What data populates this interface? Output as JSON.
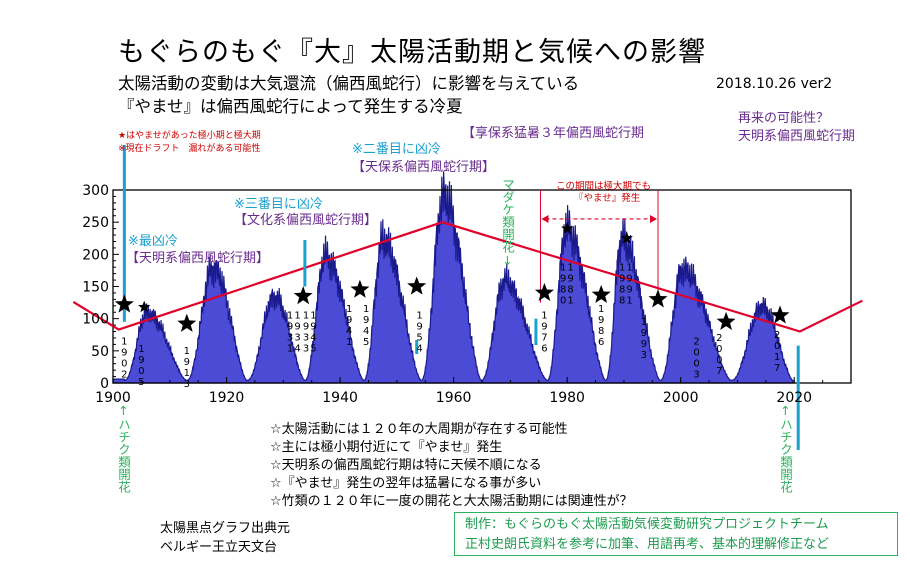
{
  "header": {
    "title": "もぐらのもぐ『大』太陽活動期と気候への影響",
    "subtitle1": "太陽活動の変動は大気還流（偏西風蛇行）に影響を与えている",
    "subtitle2": "『やませ』は偏西風蛇行によって発生する冷夏",
    "date": "2018.10.26 ver2",
    "note1": "★はやませがあった極小期と極大期",
    "note2": "※現在ドラフト　漏れがある可能性"
  },
  "annotations": {
    "tenmei_top": "再来の可能性？",
    "tenmei_top2": "天明系偏西風蛇行期",
    "kyoho": "【享保系猛暑３年偏西風蛇行期",
    "tenpo_a": "※二番目に凶冷",
    "tenpo_b": "【天保系偏西風蛇行期】",
    "bunka_a": "※三番目に凶冷",
    "bunka_b": "【文化系偏西風蛇行期】",
    "tenmei_a": "※最凶冷",
    "tenmei_b": "【天明系偏西風蛇行期】",
    "madake": "マダケ類開花↓",
    "period_a": "この期間は極大期でも",
    "period_b": "『やませ』発生",
    "hachiku_left": "↑ハチク類開花",
    "hachiku_right": "↑ハチク類開花"
  },
  "bullets": [
    "☆太陽活動には１２０年の大周期が存在する可能性",
    "☆主には極小期付近にて『やませ』発生",
    "☆天明系の偏西風蛇行期は特に天候不順になる",
    "☆『やませ』発生の翌年は猛暑になる事が多い",
    "☆竹類の１２０年に一度の開花と大太陽活動期には関連性が？"
  ],
  "footer": {
    "source1": "太陽黒点グラフ出典元",
    "source2": "ベルギー王立天文台",
    "credit1": "制作：もぐらのもぐ太陽活動気候変動研究プロジェクトチーム",
    "credit2": "正村史朗氏資料を参考に加筆、用語再考、基本的理解修正など"
  },
  "chart_data": {
    "type": "area",
    "xlim": [
      1900,
      2030
    ],
    "ylim": [
      0,
      300
    ],
    "x_ticks": [
      1900,
      1920,
      1940,
      1960,
      1980,
      2000,
      2020
    ],
    "y_ticks": [
      0,
      50,
      100,
      150,
      200,
      250,
      300
    ],
    "fill_color": "#4b4bd6",
    "trend_color": "#e0002a",
    "cyan_color": "#1ba1cf",
    "cycles": [
      {
        "min": 1902,
        "max": 1906,
        "peak": 105
      },
      {
        "min": 1913,
        "max": 1917.6,
        "peak": 175
      },
      {
        "min": 1923.6,
        "max": 1928.4,
        "peak": 130
      },
      {
        "min": 1933.8,
        "max": 1937.4,
        "peak": 192
      },
      {
        "min": 1944.2,
        "max": 1947.5,
        "peak": 218
      },
      {
        "min": 1954.3,
        "max": 1958.2,
        "peak": 285
      },
      {
        "min": 1964.9,
        "max": 1968.9,
        "peak": 155
      },
      {
        "min": 1976.5,
        "max": 1979.9,
        "peak": 235
      },
      {
        "min": 1986.8,
        "max": 1989.6,
        "peak": 220
      },
      {
        "min": 1996.4,
        "max": 2000.3,
        "peak": 172
      },
      {
        "min": 2008.9,
        "max": 2014.3,
        "peak": 115
      },
      {
        "min": 2019.8,
        "max": 2019.8,
        "peak": 0
      }
    ],
    "trend_line": [
      [
        1893,
        126
      ],
      [
        1901,
        83
      ],
      [
        1958,
        250
      ],
      [
        2021,
        80
      ],
      [
        2032,
        128
      ]
    ],
    "stars": [
      [
        1902,
        122
      ],
      [
        1905.5,
        118
      ],
      [
        1913,
        92
      ],
      [
        1933.5,
        135
      ],
      [
        1943.5,
        145
      ],
      [
        1953.5,
        150
      ],
      [
        1976,
        140
      ],
      [
        1980,
        240
      ],
      [
        1986,
        137
      ],
      [
        1990.5,
        225
      ],
      [
        1996,
        130
      ],
      [
        2008,
        95
      ],
      [
        2017.5,
        105
      ]
    ],
    "year_labels": [
      {
        "x": 1902,
        "y": 60,
        "text": "1902"
      },
      {
        "x": 1905,
        "y": 48,
        "text": "1905"
      },
      {
        "x": 1913,
        "y": 45,
        "text": "1913"
      },
      {
        "x": 1931.2,
        "y": 100,
        "text": "1931"
      },
      {
        "x": 1932.5,
        "y": 100,
        "text": "1934"
      },
      {
        "x": 1934.0,
        "y": 100,
        "text": "1933"
      },
      {
        "x": 1935.3,
        "y": 100,
        "text": "1945"
      },
      {
        "x": 1941.6,
        "y": 110,
        "text": "1941"
      },
      {
        "x": 1944.6,
        "y": 110,
        "text": "1945"
      },
      {
        "x": 1954,
        "y": 100,
        "text": "1954"
      },
      {
        "x": 1976,
        "y": 100,
        "text": "1976"
      },
      {
        "x": 1979.3,
        "y": 175,
        "text": "1980"
      },
      {
        "x": 1980.6,
        "y": 175,
        "text": "1981"
      },
      {
        "x": 1986,
        "y": 110,
        "text": "1986"
      },
      {
        "x": 1989.7,
        "y": 175,
        "text": "1988"
      },
      {
        "x": 1991.0,
        "y": 175,
        "text": "1991"
      },
      {
        "x": 1993.5,
        "y": 90,
        "text": "1993"
      },
      {
        "x": 2002.8,
        "y": 60,
        "text": "2003"
      },
      {
        "x": 2006.8,
        "y": 65,
        "text": "2007"
      },
      {
        "x": 2017,
        "y": 70,
        "text": "2017"
      }
    ],
    "cyan_lines": [
      [
        1902,
        95,
        145
      ],
      [
        1933.8,
        150,
        240
      ],
      [
        1953.5,
        45,
        340
      ],
      [
        1974.5,
        100,
        345
      ],
      [
        2020.7,
        58,
        450
      ]
    ],
    "red_bracket": {
      "x1": 1975.3,
      "x2": 1996,
      "y_top": 300,
      "y_bottom": 125,
      "arrow_y": 255
    }
  }
}
